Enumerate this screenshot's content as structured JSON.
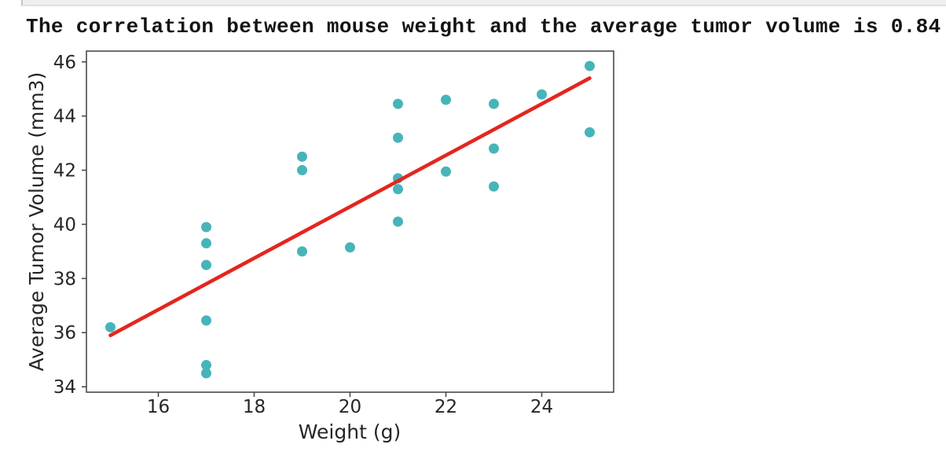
{
  "notebook": {
    "output_text": "The correlation between mouse weight and the average tumor volume is 0.84",
    "correlation_value": "0.84"
  },
  "chart_data": {
    "type": "scatter",
    "title": "",
    "xlabel": "Weight (g)",
    "ylabel": "Average Tumor Volume (mm3)",
    "xlim": [
      14.5,
      25.5
    ],
    "ylim": [
      33.8,
      46.4
    ],
    "xticks": [
      16,
      18,
      20,
      22,
      24
    ],
    "yticks": [
      34,
      36,
      38,
      40,
      42,
      44,
      46
    ],
    "grid": false,
    "legend": "none",
    "marker_color": "#47b4ba",
    "line_color": "#e3261f",
    "spine_color": "#4a4a4a",
    "points": [
      [
        15,
        36.2
      ],
      [
        17,
        39.9
      ],
      [
        17,
        39.3
      ],
      [
        17,
        38.5
      ],
      [
        17,
        36.45
      ],
      [
        17,
        34.8
      ],
      [
        17,
        34.5
      ],
      [
        19,
        42.5
      ],
      [
        19,
        42.0
      ],
      [
        19,
        39.0
      ],
      [
        20,
        39.15
      ],
      [
        21,
        44.45
      ],
      [
        21,
        43.2
      ],
      [
        21,
        41.7
      ],
      [
        21,
        41.3
      ],
      [
        21,
        40.1
      ],
      [
        22,
        44.6
      ],
      [
        22,
        41.95
      ],
      [
        23,
        44.45
      ],
      [
        23,
        42.8
      ],
      [
        23,
        41.4
      ],
      [
        24,
        44.8
      ],
      [
        25,
        45.85
      ],
      [
        25,
        43.4
      ]
    ],
    "regression_line": {
      "x1": 15,
      "y1": 35.9,
      "x2": 25,
      "y2": 45.4
    }
  }
}
